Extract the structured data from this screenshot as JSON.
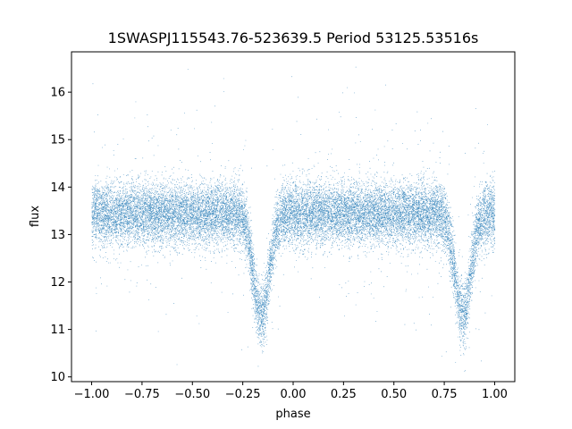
{
  "chart_data": {
    "type": "scatter",
    "title": "1SWASPJ115543.76-523639.5 Period 53125.53516s",
    "xlabel": "phase",
    "ylabel": "flux",
    "xlim": [
      -1.1,
      1.1
    ],
    "ylim": [
      9.9,
      16.85
    ],
    "x_ticks": [
      -1.0,
      -0.75,
      -0.5,
      -0.25,
      0.0,
      0.25,
      0.5,
      0.75,
      1.0
    ],
    "x_tick_labels": [
      "−1.00",
      "−0.75",
      "−0.50",
      "−0.25",
      "0.00",
      "0.25",
      "0.50",
      "0.75",
      "1.00"
    ],
    "y_ticks": [
      10,
      11,
      12,
      13,
      14,
      15,
      16
    ],
    "y_tick_labels": [
      "10",
      "11",
      "12",
      "13",
      "14",
      "15",
      "16"
    ],
    "grid": false,
    "legend": "none",
    "marker_color": "#1f77b4",
    "baseline_flux": 13.45,
    "baseline_scatter": 0.32,
    "eclipses": [
      {
        "phase_center": -0.16,
        "depth_flux": 11.3
      },
      {
        "phase_center": 0.84,
        "depth_flux": 11.3
      }
    ],
    "approx_point_count": 22000
  }
}
